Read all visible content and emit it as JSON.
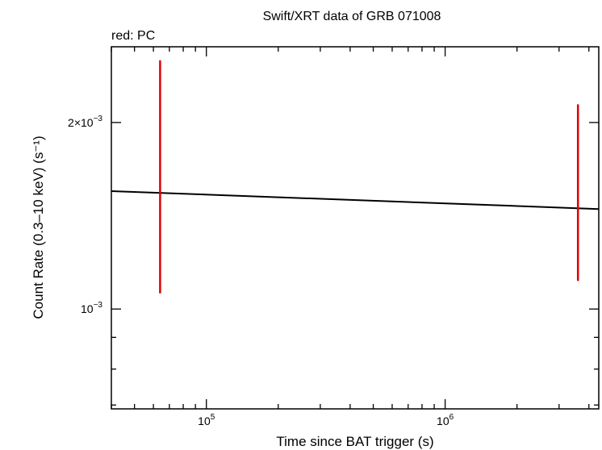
{
  "chart_data": {
    "type": "scatter",
    "title": "Swift/XRT data of GRB 071008",
    "subtitle": "red: PC",
    "xlabel": "Time since BAT trigger (s)",
    "ylabel": "Count Rate (0.3–10 keV) (s⁻¹)",
    "x_scale": "log",
    "y_scale": "log",
    "xlim": [
      40000,
      4400000
    ],
    "ylim": [
      0.00069,
      0.00265
    ],
    "x_ticks": [
      {
        "value": 100000,
        "base": "10",
        "exp": "5"
      },
      {
        "value": 1000000,
        "base": "10",
        "exp": "6"
      }
    ],
    "y_ticks": [
      {
        "value": 0.001,
        "base": "10",
        "exp": "−3"
      },
      {
        "value": 0.002,
        "base": "2×10",
        "exp": "−3"
      }
    ],
    "series": [
      {
        "color": "#e00000",
        "points": [
          {
            "x": 64000,
            "y": 0.00154,
            "y_low": 0.00106,
            "y_high": 0.00252
          },
          {
            "x": 3600000,
            "y": 0.00146,
            "y_low": 0.00111,
            "y_high": 0.00214
          }
        ]
      }
    ],
    "model": {
      "type": "power-law",
      "color": "#000000",
      "points": [
        [
          40000,
          0.00155
        ],
        [
          4400000,
          0.00145
        ]
      ]
    },
    "grid": false,
    "legend": "none"
  }
}
